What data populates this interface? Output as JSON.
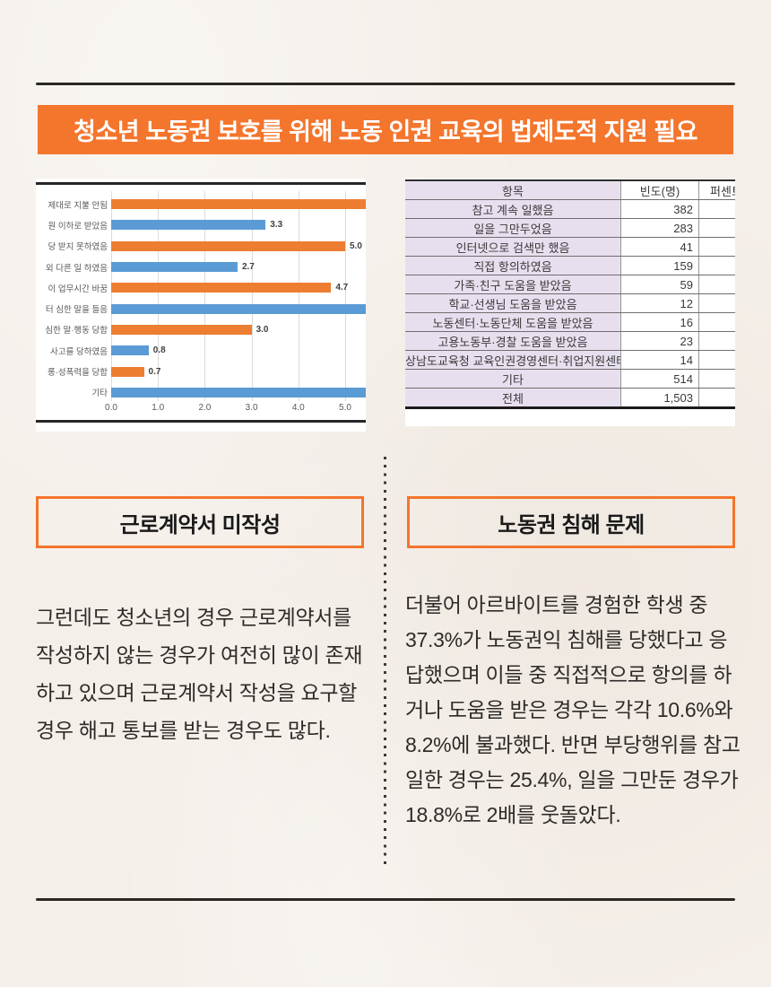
{
  "page": {
    "background": "#F5EFE9",
    "accent": "#F4752C",
    "rule_color": "#2B2723",
    "divider_dot_color": "#3A3A3A"
  },
  "banner": {
    "title": "청소년 노동권 보호를 위해 노동 인권 교육의 법제도적 지원 필요",
    "text_color": "#FFFFFF",
    "background": "#F4752C"
  },
  "chart_data": {
    "type": "bar",
    "orientation": "horizontal",
    "title": "",
    "categories": [
      "제대로 지불 안됨",
      "원 이하로 받았음",
      "당 받지 못하였음",
      "외 다른 일 하였음",
      "이 업무시간 바꿈",
      "터 심한 말을 들음",
      "심한 말·행동 당함",
      "사고를 당하였음",
      "롱·성폭력을 당함",
      "기타"
    ],
    "values": [
      5.44,
      3.3,
      5.0,
      2.7,
      4.7,
      5.44,
      3.0,
      0.8,
      0.7,
      5.44
    ],
    "value_labels": [
      "",
      "3.3",
      "5.0",
      "2.7",
      "4.7",
      "",
      "3.0",
      "0.8",
      "0.7",
      ""
    ],
    "clipped": [
      true,
      false,
      false,
      false,
      false,
      true,
      false,
      false,
      false,
      true
    ],
    "bar_colors": [
      "#ED7D31",
      "#5B9BD5",
      "#ED7D31",
      "#5B9BD5",
      "#ED7D31",
      "#5B9BD5",
      "#ED7D31",
      "#5B9BD5",
      "#ED7D31",
      "#5B9BD5"
    ],
    "x_ticks": [
      "0.0",
      "1.0",
      "2.0",
      "3.0",
      "4.0",
      "5.0"
    ],
    "xlim": [
      0,
      5.44
    ],
    "grid": true,
    "legend": "none"
  },
  "table": {
    "columns": [
      "항목",
      "빈도(명)",
      "퍼센트"
    ],
    "rows": [
      [
        "참고 계속 일했음",
        "382",
        ""
      ],
      [
        "일을 그만두었음",
        "283",
        ""
      ],
      [
        "인터넷으로 검색만 했음",
        "41",
        ""
      ],
      [
        "직접 항의하였음",
        "159",
        ""
      ],
      [
        "가족·친구 도움을 받았음",
        "59",
        ""
      ],
      [
        "학교·선생님 도움을 받았음",
        "12",
        ""
      ],
      [
        "노동센터·노동단체 도움을 받았음",
        "16",
        ""
      ],
      [
        "고용노동부·경찰 도움을 받았음",
        "23",
        ""
      ],
      [
        "상남도교육청 교육인권경영센터·취업지원센터 도움",
        "14",
        ""
      ],
      [
        "기타",
        "514",
        ""
      ],
      [
        "전체",
        "1,503",
        ""
      ]
    ],
    "item_column_bg": "#E8DFEE"
  },
  "sections": {
    "left": {
      "heading": "근로계약서 미작성",
      "body": "그런데도 청소년의 경우 근로계약서를 작성하지 않는 경우가 여전히 많이 존재하고 있으며 근로계약서 작성을 요구할 경우 해고 통보를 받는 경우도 많다."
    },
    "right": {
      "heading": "노동권 침해 문제",
      "body": "더불어 아르바이트를 경험한 학생 중 37.3%가 노동권익 침해를 당했다고 응답했으며 이들 중 직접적으로 항의를 하거나 도움을 받은 경우는 각각 10.6%와 8.2%에 불과했다. 반면 부당행위를 참고 일한 경우는 25.4%, 일을 그만둔 경우가 18.8%로 2배를 웃돌았다."
    }
  }
}
